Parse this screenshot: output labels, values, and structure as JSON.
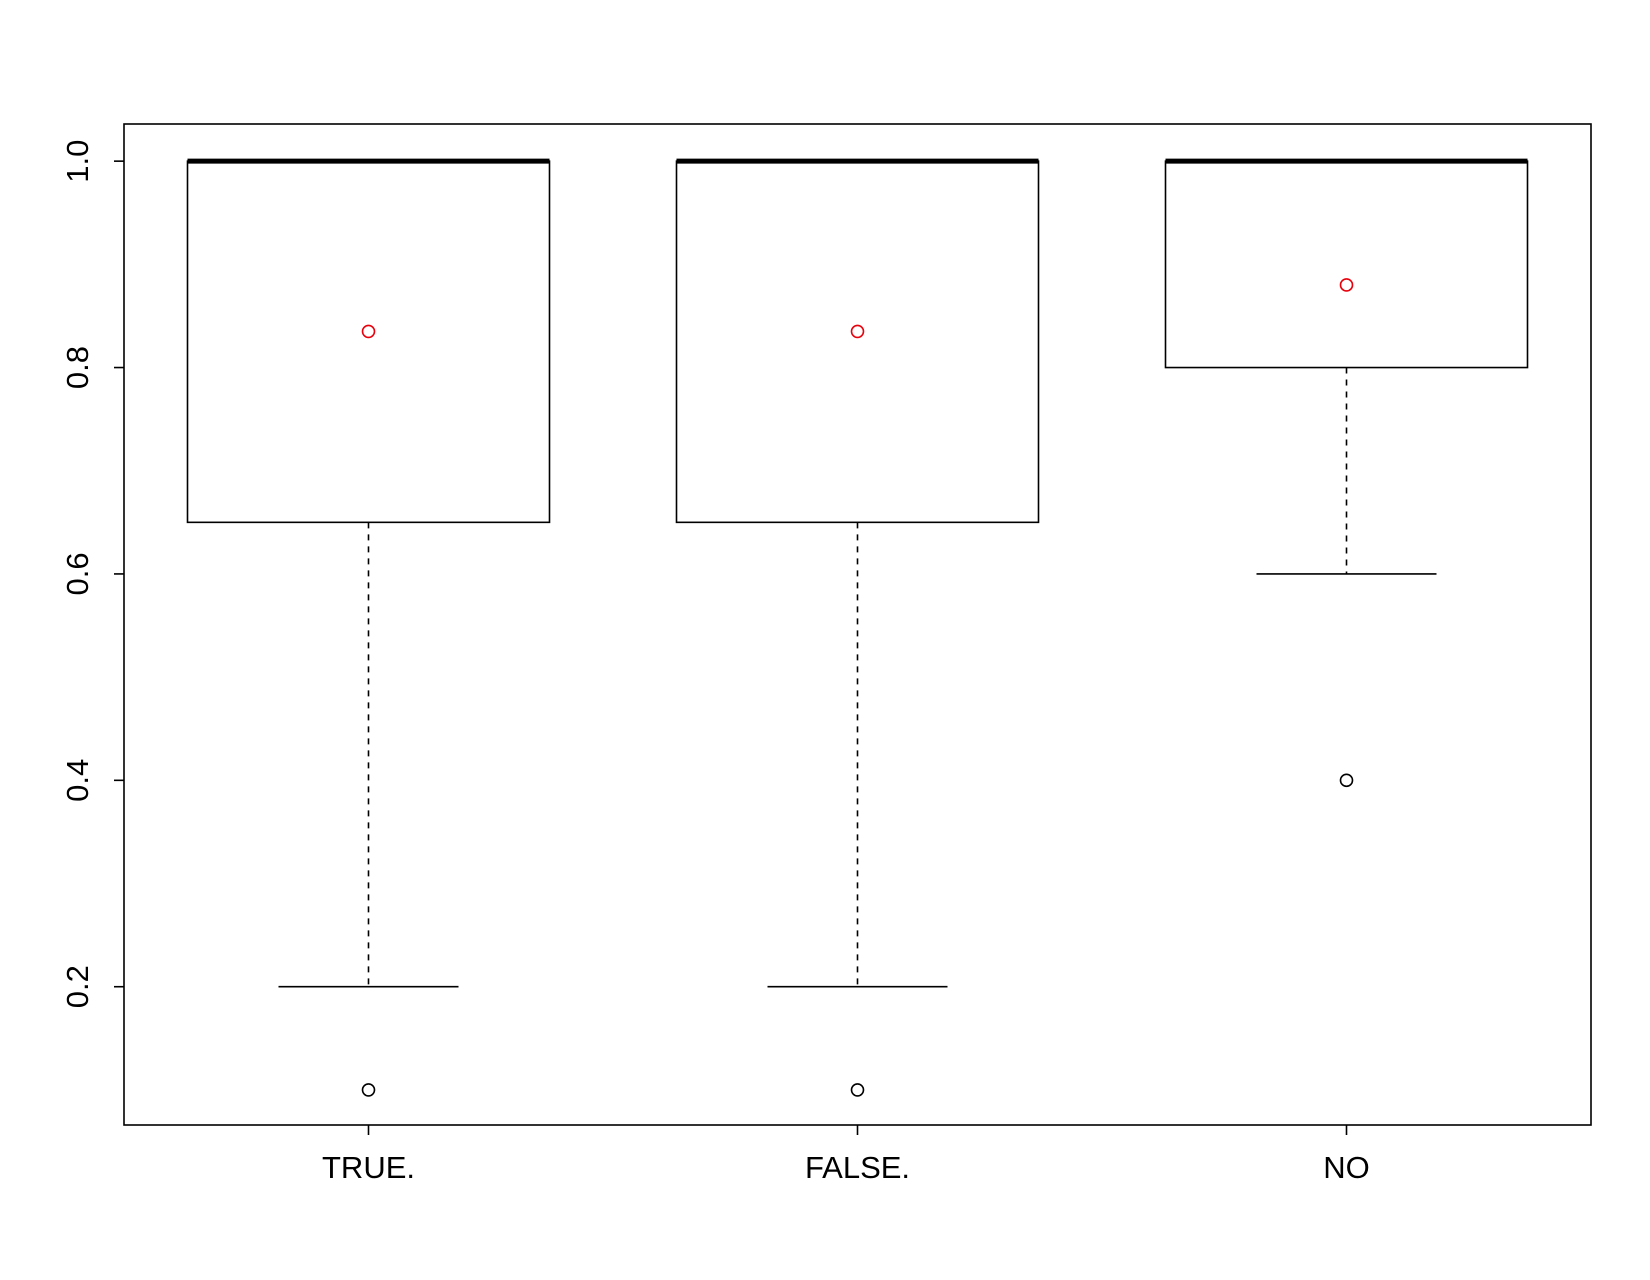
{
  "chart_data": {
    "type": "boxplot",
    "categories": [
      "TRUE.",
      "FALSE.",
      "NO"
    ],
    "boxes": [
      {
        "category": "TRUE.",
        "whisker_low": 0.2,
        "q1": 0.65,
        "median": 1.0,
        "q3": 1.0,
        "whisker_high": 1.0,
        "mean": 0.835,
        "outliers": [
          0.1
        ]
      },
      {
        "category": "FALSE.",
        "whisker_low": 0.2,
        "q1": 0.65,
        "median": 1.0,
        "q3": 1.0,
        "whisker_high": 1.0,
        "mean": 0.835,
        "outliers": [
          0.1
        ]
      },
      {
        "category": "NO",
        "whisker_low": 0.6,
        "q1": 0.8,
        "median": 1.0,
        "q3": 1.0,
        "whisker_high": 1.0,
        "mean": 0.88,
        "outliers": [
          0.4
        ]
      }
    ],
    "y_ticks": [
      0.2,
      0.4,
      0.6,
      0.8,
      1.0
    ],
    "y_tick_labels": [
      "0.2",
      "0.4",
      "0.6",
      "0.8",
      "1.0"
    ],
    "ylim": [
      0.066,
      1.036
    ],
    "title": "",
    "xlabel": "",
    "ylabel": "",
    "grid": false,
    "colors": {
      "box_stroke": "#000000",
      "outlier": "#000000",
      "mean_marker": "#e8000b"
    }
  }
}
